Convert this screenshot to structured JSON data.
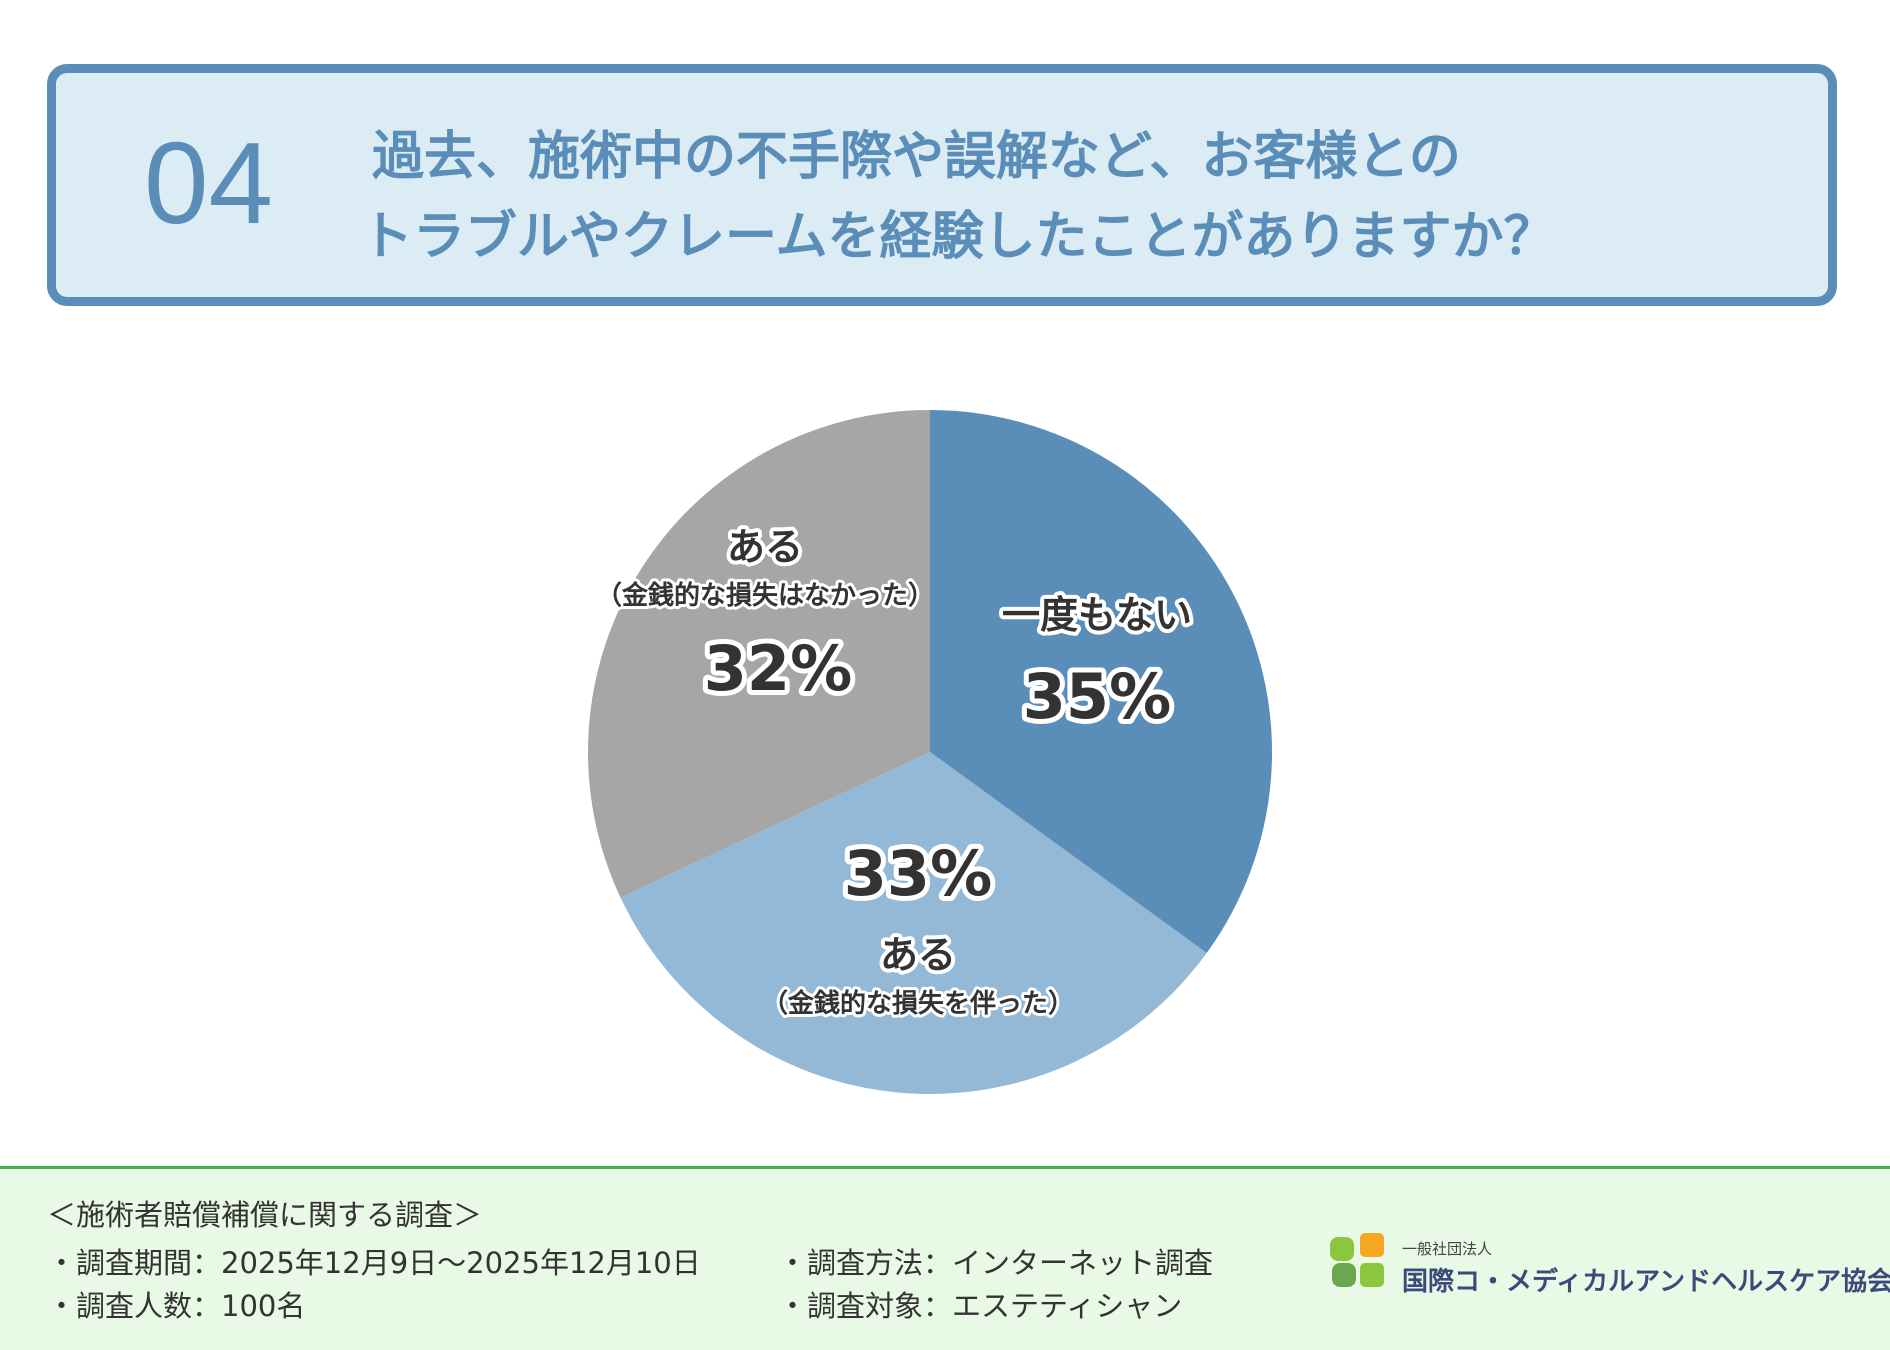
{
  "header": {
    "number": "04",
    "question_line1": "過去、施術中の不手際や誤解など、お客様との",
    "question_line2": "トラブルやクレームを経験したことがありますか？"
  },
  "chart_data": {
    "type": "pie",
    "start_angle_deg": 0,
    "direction": "clockwise",
    "slices": [
      {
        "label": "一度もない",
        "sublabel": "",
        "value": 35,
        "value_label": "35%",
        "color": "#5a8db7"
      },
      {
        "label": "ある",
        "sublabel": "（金銭的な損失を伴った）",
        "value": 33,
        "value_label": "33%",
        "color": "#93b9d6"
      },
      {
        "label": "ある",
        "sublabel": "（金銭的な損失はなかった）",
        "value": 32,
        "value_label": "32%",
        "color": "#a6a6a6"
      }
    ]
  },
  "footer": {
    "title": "＜施術者賠償補償に関する調査＞",
    "period": "・調査期間：2025年12月9日～2025年12月10日",
    "count": "・調査人数：100名",
    "method": "・調査方法：インターネット調査",
    "target": "・調査対象：エステティシャン",
    "logo_small": "一般社団法人",
    "logo_name": "国際コ・メディカルアンドヘルスケア協会",
    "logo_colors": [
      "#f7a823",
      "#8cc63f",
      "#6aa84f",
      "#8cc63f"
    ]
  }
}
